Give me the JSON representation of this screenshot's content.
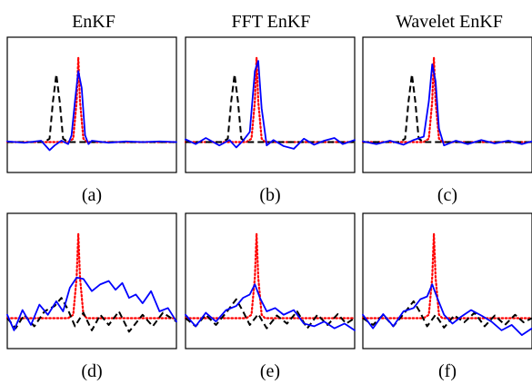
{
  "column_titles": [
    "EnKF",
    "FFT EnKF",
    "Wavelet EnKF"
  ],
  "panel_labels": [
    "(a)",
    "(b)",
    "(c)",
    "(d)",
    "(e)",
    "(f)"
  ],
  "colors": {
    "truth": "#ff0000",
    "forecast": "#000000",
    "analysis": "#0000ff"
  },
  "chart_data": [
    {
      "type": "line",
      "panel": "(a)",
      "xlim": [
        0,
        1
      ],
      "ylim": [
        -0.45,
        1.55
      ],
      "series": [
        {
          "style": "dotted",
          "color": "#ff0000",
          "x": [
            0,
            0.36,
            0.39,
            0.41,
            0.42,
            0.43,
            0.45,
            0.47,
            1
          ],
          "y": [
            0,
            0,
            0.05,
            0.6,
            1.25,
            0.6,
            0.05,
            0,
            0
          ]
        },
        {
          "style": "dashed",
          "color": "#000000",
          "x": [
            0,
            0.22,
            0.25,
            0.27,
            0.29,
            0.31,
            0.33,
            0.36,
            1
          ],
          "y": [
            0,
            0,
            0.05,
            0.6,
            1.0,
            0.6,
            0.05,
            0,
            0
          ]
        },
        {
          "style": "solid",
          "color": "#0000ff",
          "x": [
            0,
            0.1,
            0.2,
            0.25,
            0.28,
            0.32,
            0.36,
            0.38,
            0.4,
            0.42,
            0.44,
            0.46,
            0.48,
            0.5,
            0.6,
            0.7,
            0.8,
            0.9,
            1
          ],
          "y": [
            0.01,
            -0.01,
            0.02,
            -0.12,
            -0.05,
            0.02,
            -0.03,
            0.1,
            0.6,
            1.05,
            0.8,
            0.1,
            -0.03,
            0.02,
            -0.01,
            0.01,
            0,
            0.01,
            0
          ]
        }
      ]
    },
    {
      "type": "line",
      "panel": "(b)",
      "xlim": [
        0,
        1
      ],
      "ylim": [
        -0.45,
        1.55
      ],
      "series": [
        {
          "style": "dotted",
          "color": "#ff0000",
          "x": [
            0,
            0.36,
            0.39,
            0.41,
            0.42,
            0.43,
            0.45,
            0.47,
            1
          ],
          "y": [
            0,
            0,
            0.05,
            0.6,
            1.25,
            0.6,
            0.05,
            0,
            0
          ]
        },
        {
          "style": "dashed",
          "color": "#000000",
          "x": [
            0,
            0.22,
            0.25,
            0.27,
            0.29,
            0.31,
            0.33,
            0.36,
            1
          ],
          "y": [
            0,
            0,
            0.05,
            0.6,
            1.0,
            0.6,
            0.05,
            0,
            0
          ]
        },
        {
          "style": "solid",
          "color": "#0000ff",
          "x": [
            0,
            0.06,
            0.12,
            0.2,
            0.26,
            0.3,
            0.34,
            0.38,
            0.41,
            0.43,
            0.45,
            0.48,
            0.52,
            0.58,
            0.64,
            0.7,
            0.76,
            0.82,
            0.88,
            0.93,
            1
          ],
          "y": [
            0.04,
            -0.03,
            0.06,
            -0.05,
            0.03,
            -0.08,
            0.02,
            0.15,
            1.05,
            1.2,
            0.5,
            -0.05,
            0.03,
            -0.06,
            -0.1,
            0.05,
            -0.04,
            0.02,
            0.06,
            -0.03,
            0.03
          ]
        }
      ]
    },
    {
      "type": "line",
      "panel": "(c)",
      "xlim": [
        0,
        1
      ],
      "ylim": [
        -0.45,
        1.55
      ],
      "series": [
        {
          "style": "dotted",
          "color": "#ff0000",
          "x": [
            0,
            0.36,
            0.39,
            0.41,
            0.42,
            0.43,
            0.45,
            0.47,
            1
          ],
          "y": [
            0,
            0,
            0.05,
            0.6,
            1.25,
            0.6,
            0.05,
            0,
            0
          ]
        },
        {
          "style": "dashed",
          "color": "#000000",
          "x": [
            0,
            0.22,
            0.25,
            0.27,
            0.29,
            0.31,
            0.33,
            0.36,
            1
          ],
          "y": [
            0,
            0,
            0.05,
            0.6,
            1.0,
            0.6,
            0.05,
            0,
            0
          ]
        },
        {
          "style": "solid",
          "color": "#0000ff",
          "x": [
            0,
            0.08,
            0.16,
            0.24,
            0.3,
            0.36,
            0.39,
            0.41,
            0.43,
            0.45,
            0.48,
            0.55,
            0.62,
            0.7,
            0.78,
            0.86,
            0.94,
            1
          ],
          "y": [
            0.01,
            -0.03,
            0.02,
            -0.04,
            0.03,
            0.08,
            0.6,
            1.15,
            0.9,
            0.2,
            -0.05,
            0.02,
            -0.03,
            0.03,
            -0.02,
            0.02,
            -0.03,
            0.01
          ]
        }
      ]
    },
    {
      "type": "line",
      "panel": "(d)",
      "xlim": [
        0,
        1
      ],
      "ylim": [
        -0.45,
        1.55
      ],
      "series": [
        {
          "style": "dotted",
          "color": "#ff0000",
          "x": [
            0,
            0.36,
            0.39,
            0.41,
            0.42,
            0.43,
            0.45,
            0.47,
            1
          ],
          "y": [
            0,
            0,
            0.05,
            0.6,
            1.25,
            0.6,
            0.05,
            0,
            0
          ]
        },
        {
          "style": "dashed",
          "color": "#000000",
          "x": [
            0,
            0.05,
            0.1,
            0.16,
            0.22,
            0.28,
            0.32,
            0.36,
            0.4,
            0.45,
            0.5,
            0.55,
            0.6,
            0.66,
            0.72,
            0.8,
            0.86,
            0.92,
            1
          ],
          "y": [
            0,
            -0.15,
            0.05,
            -0.12,
            0.1,
            0.18,
            0.3,
            0.12,
            -0.12,
            0.08,
            -0.18,
            0.05,
            -0.1,
            0.1,
            -0.2,
            0.05,
            -0.12,
            0.08,
            -0.05
          ]
        },
        {
          "style": "solid",
          "color": "#0000ff",
          "x": [
            0,
            0.04,
            0.09,
            0.14,
            0.19,
            0.24,
            0.29,
            0.33,
            0.37,
            0.41,
            0.45,
            0.5,
            0.55,
            0.6,
            0.64,
            0.68,
            0.72,
            0.76,
            0.8,
            0.85,
            0.9,
            0.95,
            1
          ],
          "y": [
            0.05,
            -0.18,
            0.12,
            -0.1,
            0.2,
            0.05,
            0.25,
            0.1,
            0.45,
            0.6,
            0.58,
            0.4,
            0.5,
            0.55,
            0.42,
            0.52,
            0.3,
            0.35,
            0.22,
            0.4,
            0.1,
            0.15,
            -0.05
          ]
        }
      ]
    },
    {
      "type": "line",
      "panel": "(e)",
      "xlim": [
        0,
        1
      ],
      "ylim": [
        -0.45,
        1.55
      ],
      "series": [
        {
          "style": "dotted",
          "color": "#ff0000",
          "x": [
            0,
            0.36,
            0.39,
            0.41,
            0.42,
            0.43,
            0.45,
            0.47,
            1
          ],
          "y": [
            0,
            0,
            0.05,
            0.6,
            1.25,
            0.6,
            0.05,
            0,
            0
          ]
        },
        {
          "style": "dashed",
          "color": "#000000",
          "x": [
            0,
            0.06,
            0.12,
            0.18,
            0.24,
            0.3,
            0.34,
            0.38,
            0.43,
            0.48,
            0.54,
            0.6,
            0.66,
            0.72,
            0.78,
            0.84,
            0.9,
            0.95,
            1
          ],
          "y": [
            0,
            -0.12,
            0.05,
            -0.1,
            0.08,
            0.28,
            0.1,
            -0.1,
            0.06,
            -0.15,
            0.04,
            -0.08,
            0.1,
            -0.15,
            0.05,
            -0.1,
            0.06,
            -0.08,
            0
          ]
        },
        {
          "style": "solid",
          "color": "#0000ff",
          "x": [
            0,
            0.06,
            0.12,
            0.18,
            0.24,
            0.3,
            0.34,
            0.38,
            0.41,
            0.44,
            0.48,
            0.53,
            0.58,
            0.64,
            0.7,
            0.76,
            0.82,
            0.88,
            0.94,
            1
          ],
          "y": [
            0.05,
            -0.12,
            0.08,
            -0.05,
            0.12,
            0.18,
            0.3,
            0.35,
            0.5,
            0.3,
            0.1,
            0.15,
            0.05,
            0.12,
            -0.08,
            -0.12,
            -0.05,
            -0.15,
            -0.08,
            -0.18
          ]
        }
      ]
    },
    {
      "type": "line",
      "panel": "(f)",
      "xlim": [
        0,
        1
      ],
      "ylim": [
        -0.45,
        1.55
      ],
      "series": [
        {
          "style": "dotted",
          "color": "#ff0000",
          "x": [
            0,
            0.36,
            0.39,
            0.41,
            0.42,
            0.43,
            0.45,
            0.47,
            1
          ],
          "y": [
            0,
            0,
            0.05,
            0.6,
            1.25,
            0.6,
            0.05,
            0,
            0
          ]
        },
        {
          "style": "dashed",
          "color": "#000000",
          "x": [
            0,
            0.06,
            0.12,
            0.18,
            0.24,
            0.3,
            0.34,
            0.38,
            0.43,
            0.48,
            0.54,
            0.6,
            0.66,
            0.72,
            0.78,
            0.84,
            0.9,
            0.95,
            1
          ],
          "y": [
            0,
            -0.1,
            0.05,
            -0.12,
            0.06,
            0.25,
            0.08,
            -0.12,
            0.05,
            -0.14,
            0.04,
            -0.06,
            0.08,
            -0.12,
            0.04,
            -0.1,
            0.05,
            -0.06,
            0
          ]
        },
        {
          "style": "solid",
          "color": "#0000ff",
          "x": [
            0,
            0.06,
            0.12,
            0.18,
            0.24,
            0.3,
            0.34,
            0.38,
            0.41,
            0.44,
            0.48,
            0.53,
            0.58,
            0.64,
            0.7,
            0.76,
            0.82,
            0.88,
            0.94,
            1
          ],
          "y": [
            0.05,
            -0.15,
            0.06,
            -0.12,
            0.1,
            0.15,
            0.28,
            0.32,
            0.5,
            0.3,
            0.05,
            -0.08,
            0.02,
            0.12,
            0.04,
            -0.05,
            -0.18,
            -0.1,
            -0.25,
            -0.15
          ]
        }
      ]
    }
  ]
}
